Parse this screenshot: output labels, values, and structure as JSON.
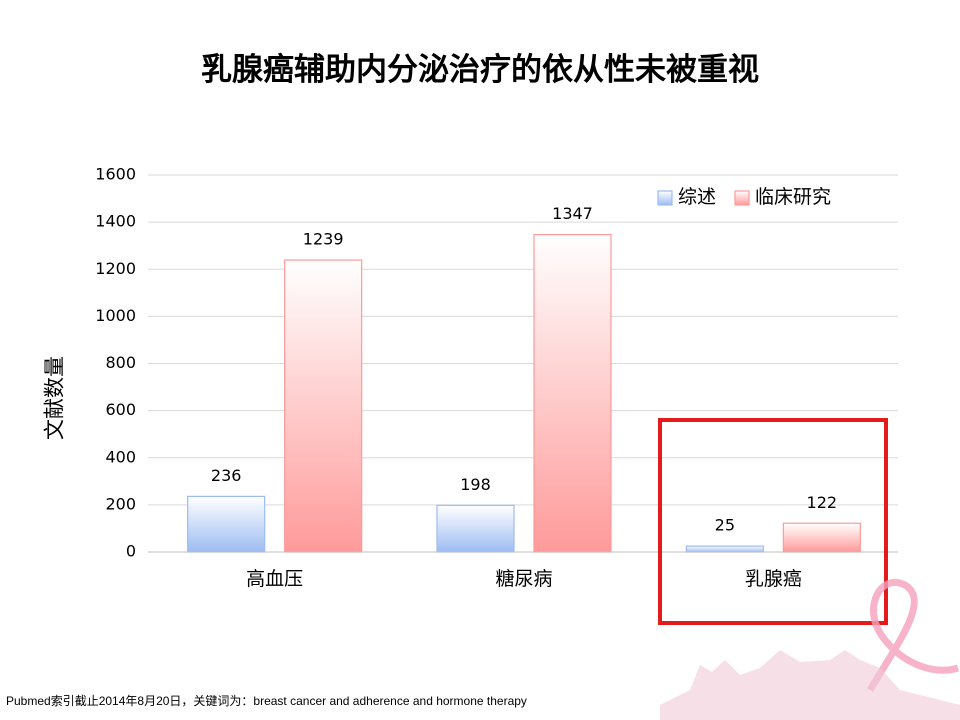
{
  "chart_data": {
    "type": "bar",
    "title": "乳腺癌辅助内分泌治疗的依从性未被重视",
    "y_label": "文献数量",
    "categories": [
      "高血压",
      "糖尿病",
      "乳腺癌"
    ],
    "series": [
      {
        "name": "综述",
        "color": "#9dbcf2",
        "values": [
          236,
          198,
          25
        ]
      },
      {
        "name": "临床研究",
        "color": "#ff9a9a",
        "values": [
          1239,
          1347,
          122
        ]
      }
    ],
    "ylim": [
      0,
      1600
    ],
    "yticks": [
      0,
      200,
      400,
      600,
      800,
      1000,
      1200,
      1400,
      1600
    ],
    "grid": true,
    "legend": "top-right",
    "footnote": "Pubmed索引截止2014年8月20日，关键词为：breast cancer and adherence and hormone therapy"
  }
}
